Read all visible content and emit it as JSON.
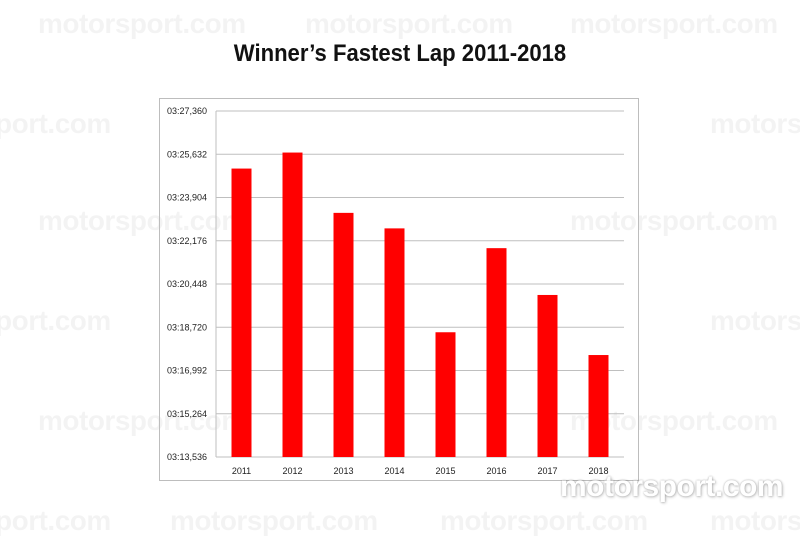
{
  "watermark_text": "motorsport.com",
  "watermark_partial_text": "port.com",
  "watermark_partial_text_2": "motors",
  "logo_text": "motorsport.com",
  "colors": {
    "bar": "#ff0000",
    "grid": "#bfbfbf",
    "frame": "#bdbdbd",
    "tick_text": "#222222"
  },
  "chart_data": {
    "type": "bar",
    "title": "Winner’s Fastest Lap 2011-2018",
    "categories": [
      "2011",
      "2012",
      "2013",
      "2014",
      "2015",
      "2016",
      "2017",
      "2018"
    ],
    "values_seconds": [
      205.06,
      205.7,
      203.29,
      202.67,
      198.52,
      201.88,
      200.01,
      197.61
    ],
    "yticks_seconds": [
      193.536,
      195.264,
      196.992,
      198.72,
      200.448,
      202.176,
      203.904,
      205.632,
      207.36
    ],
    "ytick_labels": [
      "03:13,536",
      "03:15,264",
      "03:16,992",
      "03:18,720",
      "03:20,448",
      "03:22,176",
      "03:23,904",
      "03:25,632",
      "03:27,360"
    ],
    "ylim": [
      193.536,
      207.36
    ],
    "grid": true,
    "legend": "none"
  }
}
